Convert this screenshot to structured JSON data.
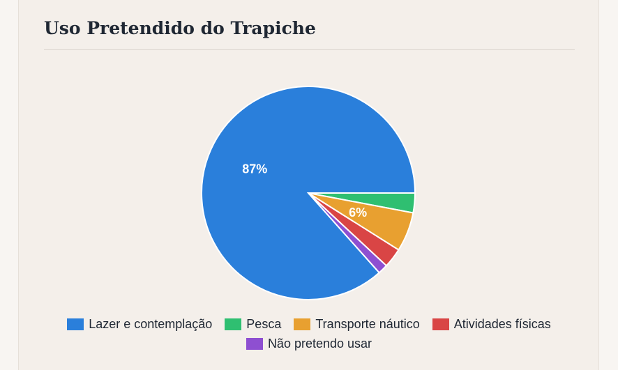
{
  "title": "Uso Pretendido do Trapiche",
  "chart_data": {
    "type": "pie",
    "title": "Uso Pretendido do Trapiche",
    "legend_position": "bottom",
    "categories": [
      "Lazer e contemplação",
      "Pesca",
      "Transporte náutico",
      "Atividades físicas",
      "Não pretendo usar"
    ],
    "values": [
      87,
      3,
      6,
      3,
      1.5
    ],
    "colors": [
      "#2a7fdb",
      "#2fbf71",
      "#e8a030",
      "#d94545",
      "#8e4fd1"
    ],
    "data_labels": [
      "87%",
      "",
      "6%",
      "",
      ""
    ]
  }
}
